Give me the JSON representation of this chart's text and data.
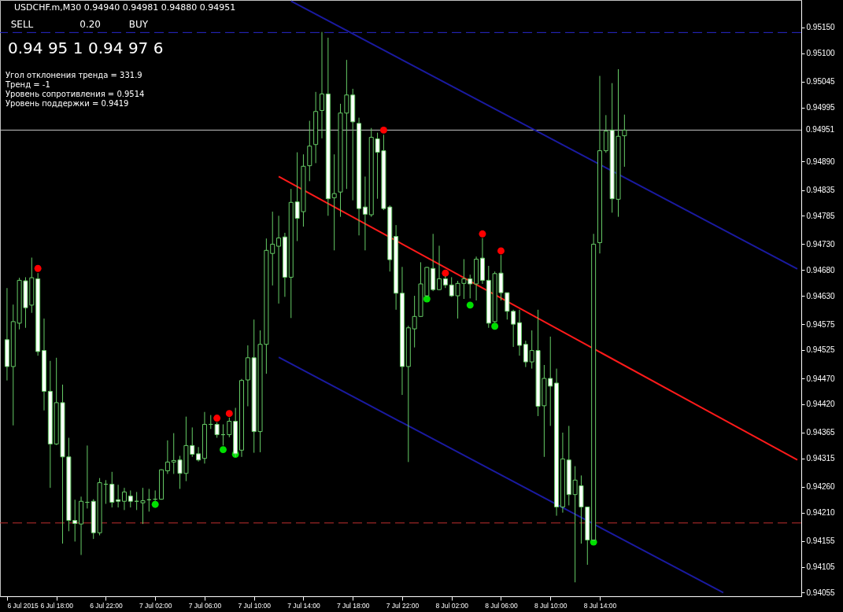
{
  "chart_data": {
    "type": "candlestick",
    "title": "USDCHF.m,M30  0.94940 0.94981 0.94880 0.94951",
    "annotations": [
      "SELL",
      "0.20",
      "BUY",
      "0.94 95 1",
      "0.94 97 6",
      "Угол отклонения тренда = 331.9",
      "Тренд = -1",
      "Уровень сопротивления = 0.9514",
      "Уровень поддержки = 0.9419"
    ],
    "x": [
      "2015-07-06T14:00",
      "2015-07-06T14:30",
      "2015-07-06T15:00",
      "2015-07-06T15:30",
      "2015-07-06T16:00",
      "2015-07-06T16:30",
      "2015-07-06T17:00",
      "2015-07-06T17:30",
      "2015-07-06T18:00",
      "2015-07-06T18:30",
      "2015-07-06T19:00",
      "2015-07-06T19:30",
      "2015-07-06T20:00",
      "2015-07-06T20:30",
      "2015-07-06T21:00",
      "2015-07-06T21:30",
      "2015-07-06T22:00",
      "2015-07-06T22:30",
      "2015-07-06T23:00",
      "2015-07-06T23:30",
      "2015-07-07T00:00",
      "2015-07-07T00:30",
      "2015-07-07T01:00",
      "2015-07-07T01:30",
      "2015-07-07T02:00",
      "2015-07-07T02:30",
      "2015-07-07T03:00",
      "2015-07-07T03:30",
      "2015-07-07T04:00",
      "2015-07-07T04:30",
      "2015-07-07T05:00",
      "2015-07-07T05:30",
      "2015-07-07T06:00",
      "2015-07-07T06:30",
      "2015-07-07T07:00",
      "2015-07-07T07:30",
      "2015-07-07T08:00",
      "2015-07-07T08:30",
      "2015-07-07T09:00",
      "2015-07-07T09:30",
      "2015-07-07T10:00",
      "2015-07-07T10:30",
      "2015-07-07T11:00",
      "2015-07-07T11:30",
      "2015-07-07T12:00",
      "2015-07-07T12:30",
      "2015-07-07T13:00",
      "2015-07-07T13:30",
      "2015-07-07T14:00",
      "2015-07-07T14:30",
      "2015-07-07T15:00",
      "2015-07-07T15:30",
      "2015-07-07T16:00",
      "2015-07-07T16:30",
      "2015-07-07T17:00",
      "2015-07-07T17:30",
      "2015-07-07T18:00",
      "2015-07-07T18:30",
      "2015-07-07T19:00",
      "2015-07-07T19:30",
      "2015-07-07T20:00",
      "2015-07-07T20:30",
      "2015-07-07T21:00",
      "2015-07-07T21:30",
      "2015-07-07T22:00",
      "2015-07-07T22:30",
      "2015-07-07T23:00",
      "2015-07-07T23:30",
      "2015-07-08T00:00",
      "2015-07-08T00:30",
      "2015-07-08T01:00",
      "2015-07-08T01:30",
      "2015-07-08T02:00",
      "2015-07-08T02:30",
      "2015-07-08T03:00",
      "2015-07-08T03:30",
      "2015-07-08T04:00",
      "2015-07-08T04:30",
      "2015-07-08T05:00",
      "2015-07-08T05:30",
      "2015-07-08T06:00",
      "2015-07-08T06:30",
      "2015-07-08T07:00",
      "2015-07-08T07:30",
      "2015-07-08T08:00",
      "2015-07-08T08:30",
      "2015-07-08T09:00",
      "2015-07-08T09:30",
      "2015-07-08T10:00",
      "2015-07-08T10:30",
      "2015-07-08T11:00",
      "2015-07-08T11:30",
      "2015-07-08T12:00",
      "2015-07-08T12:30",
      "2015-07-08T13:00",
      "2015-07-08T13:30",
      "2015-07-08T14:00",
      "2015-07-08T14:30",
      "2015-07-08T15:00",
      "2015-07-08T15:30",
      "2015-07-08T16:00"
    ],
    "ohlc": [
      [
        0.94545,
        0.94645,
        0.94466,
        0.94493
      ],
      [
        0.94493,
        0.94613,
        0.94379,
        0.9458
      ],
      [
        0.94577,
        0.94665,
        0.94565,
        0.9466
      ],
      [
        0.94659,
        0.94666,
        0.94568,
        0.94607
      ],
      [
        0.94612,
        0.94704,
        0.94597,
        0.94665
      ],
      [
        0.94663,
        0.94674,
        0.94514,
        0.94522
      ],
      [
        0.94524,
        0.94586,
        0.94408,
        0.94445
      ],
      [
        0.94445,
        0.94504,
        0.94258,
        0.94343
      ],
      [
        0.94343,
        0.9451,
        0.94341,
        0.94423
      ],
      [
        0.94423,
        0.94458,
        0.9415,
        0.94318
      ],
      [
        0.94318,
        0.94355,
        0.94174,
        0.94195
      ],
      [
        0.94195,
        0.94235,
        0.94154,
        0.94189
      ],
      [
        0.94188,
        0.94241,
        0.94128,
        0.94232
      ],
      [
        0.9423,
        0.9434,
        0.94218,
        0.9423
      ],
      [
        0.94232,
        0.94236,
        0.94159,
        0.94171
      ],
      [
        0.94171,
        0.94277,
        0.94166,
        0.94268
      ],
      [
        0.94265,
        0.94273,
        0.94227,
        0.94265
      ],
      [
        0.94265,
        0.94289,
        0.9422,
        0.9423
      ],
      [
        0.94235,
        0.94264,
        0.9422,
        0.94232
      ],
      [
        0.94232,
        0.94258,
        0.94215,
        0.9425
      ],
      [
        0.94242,
        0.94253,
        0.9422,
        0.94232
      ],
      [
        0.94232,
        0.9425,
        0.94215,
        0.94232
      ],
      [
        0.94229,
        0.94258,
        0.94188,
        0.94233
      ],
      [
        0.94235,
        0.94256,
        0.94212,
        0.94235
      ],
      [
        0.94236,
        0.94253,
        0.94233,
        0.94236
      ],
      [
        0.94236,
        0.94294,
        0.94235,
        0.94293
      ],
      [
        0.94291,
        0.9435,
        0.94285,
        0.94308
      ],
      [
        0.94308,
        0.94364,
        0.94285,
        0.94311
      ],
      [
        0.94312,
        0.9432,
        0.94256,
        0.94286
      ],
      [
        0.94286,
        0.94396,
        0.94271,
        0.9434
      ],
      [
        0.9434,
        0.94375,
        0.94318,
        0.94323
      ],
      [
        0.94324,
        0.94337,
        0.94309,
        0.94312
      ],
      [
        0.94315,
        0.94405,
        0.94305,
        0.94381
      ],
      [
        0.94381,
        0.94399,
        0.94372,
        0.94381
      ],
      [
        0.94381,
        0.94385,
        0.94355,
        0.94361
      ],
      [
        0.94361,
        0.94381,
        0.9434,
        0.94361
      ],
      [
        0.94361,
        0.94394,
        0.94356,
        0.94387
      ],
      [
        0.94387,
        0.94413,
        0.94318,
        0.94324
      ],
      [
        0.94331,
        0.94469,
        0.94318,
        0.94466
      ],
      [
        0.94467,
        0.94534,
        0.94416,
        0.9451
      ],
      [
        0.9451,
        0.94584,
        0.94326,
        0.94367
      ],
      [
        0.94367,
        0.94563,
        0.94327,
        0.94536
      ],
      [
        0.94536,
        0.94741,
        0.94479,
        0.94718
      ],
      [
        0.94712,
        0.94793,
        0.9465,
        0.9473
      ],
      [
        0.94726,
        0.94785,
        0.94615,
        0.94742
      ],
      [
        0.94744,
        0.94752,
        0.94628,
        0.94666
      ],
      [
        0.94666,
        0.94837,
        0.94587,
        0.94811
      ],
      [
        0.94812,
        0.94908,
        0.94736,
        0.9478
      ],
      [
        0.94793,
        0.94904,
        0.94764,
        0.94881
      ],
      [
        0.94882,
        0.94969,
        0.94852,
        0.9492
      ],
      [
        0.94923,
        0.95025,
        0.94887,
        0.94987
      ],
      [
        0.94989,
        0.95141,
        0.94935,
        0.95021
      ],
      [
        0.95021,
        0.9513,
        0.94785,
        0.94818
      ],
      [
        0.9482,
        0.94904,
        0.94718,
        0.94828
      ],
      [
        0.94831,
        0.95002,
        0.94783,
        0.94984
      ],
      [
        0.94984,
        0.95087,
        0.94837,
        0.95019
      ],
      [
        0.95019,
        0.95031,
        0.94815,
        0.94967
      ],
      [
        0.94964,
        0.94975,
        0.94747,
        0.94799
      ],
      [
        0.94802,
        0.94861,
        0.94718,
        0.94788
      ],
      [
        0.94787,
        0.94955,
        0.94783,
        0.94937
      ],
      [
        0.94934,
        0.94946,
        0.94818,
        0.94908
      ],
      [
        0.94911,
        0.94942,
        0.94796,
        0.94799
      ],
      [
        0.94802,
        0.94805,
        0.94677,
        0.947
      ],
      [
        0.94745,
        0.94767,
        0.94603,
        0.94635
      ],
      [
        0.94635,
        0.94686,
        0.94438,
        0.94493
      ],
      [
        0.94493,
        0.94572,
        0.94308,
        0.94568
      ],
      [
        0.94566,
        0.9463,
        0.9453,
        0.9459
      ],
      [
        0.9459,
        0.94695,
        0.94589,
        0.94653
      ],
      [
        0.9463,
        0.94686,
        0.94628,
        0.94685
      ],
      [
        0.94683,
        0.9475,
        0.94639,
        0.94642
      ],
      [
        0.94642,
        0.94727,
        0.94641,
        0.94663
      ],
      [
        0.94663,
        0.94668,
        0.94645,
        0.94651
      ],
      [
        0.94651,
        0.94666,
        0.94628,
        0.9463
      ],
      [
        0.9463,
        0.94659,
        0.94586,
        0.94654
      ],
      [
        0.94654,
        0.94701,
        0.94624,
        0.94663
      ],
      [
        0.94663,
        0.94671,
        0.94625,
        0.94653
      ],
      [
        0.94653,
        0.94706,
        0.94621,
        0.94701
      ],
      [
        0.94703,
        0.94742,
        0.94653,
        0.9466
      ],
      [
        0.9466,
        0.94688,
        0.94568,
        0.94577
      ],
      [
        0.9458,
        0.94677,
        0.94578,
        0.94673
      ],
      [
        0.94674,
        0.94709,
        0.94621,
        0.94636
      ],
      [
        0.94636,
        0.94636,
        0.94584,
        0.946
      ],
      [
        0.946,
        0.94603,
        0.94531,
        0.94575
      ],
      [
        0.94578,
        0.94603,
        0.94514,
        0.94534
      ],
      [
        0.94536,
        0.94543,
        0.94492,
        0.94502
      ],
      [
        0.94502,
        0.94563,
        0.94489,
        0.94524
      ],
      [
        0.94524,
        0.94603,
        0.94397,
        0.94416
      ],
      [
        0.94417,
        0.94496,
        0.94318,
        0.9447
      ],
      [
        0.9447,
        0.94551,
        0.94378,
        0.94455
      ],
      [
        0.94461,
        0.94489,
        0.94204,
        0.94221
      ],
      [
        0.94221,
        0.94365,
        0.9421,
        0.94314
      ],
      [
        0.94312,
        0.94378,
        0.94224,
        0.94245
      ],
      [
        0.94245,
        0.943,
        0.94075,
        0.94273
      ],
      [
        0.94262,
        0.94282,
        0.9415,
        0.94221
      ],
      [
        0.94221,
        0.94221,
        0.94109,
        0.94157
      ],
      [
        0.94157,
        0.9475,
        0.94156,
        0.9473
      ],
      [
        0.94733,
        0.95056,
        0.94712,
        0.94911
      ],
      [
        0.94911,
        0.9498,
        0.94907,
        0.94949
      ],
      [
        0.94951,
        0.95042,
        0.94791,
        0.94818
      ],
      [
        0.94817,
        0.95069,
        0.94783,
        0.94939
      ],
      [
        0.9494,
        0.94981,
        0.9488,
        0.94951
      ]
    ],
    "series": [
      {
        "type": "scatter",
        "color": "#ff0000",
        "marker": "circle",
        "x": [
          "2015-07-06T16:30",
          "2015-07-07T07:00",
          "2015-07-07T08:00",
          "2015-07-07T20:30",
          "2015-07-08T01:30",
          "2015-07-08T04:30",
          "2015-07-08T06:00"
        ],
        "values": [
          0.94683,
          0.94393,
          0.94402,
          0.94951,
          0.94674,
          0.9475,
          0.94717
        ]
      },
      {
        "type": "scatter",
        "color": "#00e000",
        "marker": "circle",
        "x": [
          "2015-07-07T02:00",
          "2015-07-07T07:30",
          "2015-07-07T08:30",
          "2015-07-08T00:00",
          "2015-07-08T03:30",
          "2015-07-08T05:30",
          "2015-07-08T13:30"
        ],
        "values": [
          0.94226,
          0.94332,
          0.94323,
          0.94624,
          0.94612,
          0.94571,
          0.94153
        ]
      },
      {
        "type": "line",
        "color": "#ff1a1a",
        "line_style": "solid",
        "x": [
          "2015-07-07T12:00",
          "2015-07-09T06:00"
        ],
        "values": [
          0.94861,
          0.94312
        ]
      },
      {
        "type": "line",
        "color": "#1a1aa0",
        "line_style": "solid",
        "x": [
          "2015-07-07T13:00",
          "2015-07-09T06:00"
        ],
        "values": [
          0.95201,
          0.94682
        ]
      },
      {
        "type": "line",
        "color": "#1a1aa0",
        "line_style": "solid",
        "x": [
          "2015-07-07T12:00",
          "2015-07-09T00:00"
        ],
        "values": [
          0.94511,
          0.94055
        ]
      }
    ],
    "ref_lines": [
      {
        "axis": "y",
        "value": 0.9514,
        "color": "#2a2ad0",
        "line_style": "dashed"
      },
      {
        "axis": "y",
        "value": 0.9419,
        "color": "#c03030",
        "line_style": "dashed"
      },
      {
        "axis": "y",
        "value": 0.94951,
        "label": "0.94951",
        "color": "#c8c8c8",
        "line_style": "solid"
      }
    ],
    "xlim": [
      "2015-07-06T13:45",
      "2015-07-09T06:00"
    ],
    "ylim": [
      0.94048,
      0.95203
    ],
    "xticks": [
      {
        "value": "2015-07-06T14:00",
        "label": "6 Jul 2015"
      },
      {
        "value": "2015-07-06T18:00",
        "label": "6 Jul 18:00"
      },
      {
        "value": "2015-07-06T22:00",
        "label": "6 Jul 22:00"
      },
      {
        "value": "2015-07-07T02:00",
        "label": "7 Jul 02:00"
      },
      {
        "value": "2015-07-07T06:00",
        "label": "7 Jul 06:00"
      },
      {
        "value": "2015-07-07T10:00",
        "label": "7 Jul 10:00"
      },
      {
        "value": "2015-07-07T14:00",
        "label": "7 Jul 14:00"
      },
      {
        "value": "2015-07-07T18:00",
        "label": "7 Jul 18:00"
      },
      {
        "value": "2015-07-07T22:00",
        "label": "7 Jul 22:00"
      },
      {
        "value": "2015-07-08T02:00",
        "label": "8 Jul 02:00"
      },
      {
        "value": "2015-07-08T06:00",
        "label": "8 Jul 06:00"
      },
      {
        "value": "2015-07-08T10:00",
        "label": "8 Jul 10:00"
      },
      {
        "value": "2015-07-08T14:00",
        "label": "8 Jul 14:00"
      }
    ],
    "yticks": [
      {
        "value": 0.9515,
        "label": "0.95150"
      },
      {
        "value": 0.951,
        "label": "0.95100"
      },
      {
        "value": 0.95045,
        "label": "0.95045"
      },
      {
        "value": 0.94995,
        "label": "0.94995"
      },
      {
        "value": 0.9489,
        "label": "0.94890"
      },
      {
        "value": 0.94835,
        "label": "0.94835"
      },
      {
        "value": 0.94785,
        "label": "0.94785"
      },
      {
        "value": 0.9473,
        "label": "0.94730"
      },
      {
        "value": 0.9468,
        "label": "0.94680"
      },
      {
        "value": 0.9463,
        "label": "0.94630"
      },
      {
        "value": 0.94575,
        "label": "0.94575"
      },
      {
        "value": 0.94525,
        "label": "0.94525"
      },
      {
        "value": 0.9447,
        "label": "0.94470"
      },
      {
        "value": 0.9442,
        "label": "0.94420"
      },
      {
        "value": 0.94365,
        "label": "0.94365"
      },
      {
        "value": 0.94315,
        "label": "0.94315"
      },
      {
        "value": 0.9426,
        "label": "0.94260"
      },
      {
        "value": 0.9421,
        "label": "0.94210"
      },
      {
        "value": 0.94155,
        "label": "0.94155"
      },
      {
        "value": 0.94105,
        "label": "0.94105"
      },
      {
        "value": 0.94055,
        "label": "0.94055"
      }
    ]
  }
}
